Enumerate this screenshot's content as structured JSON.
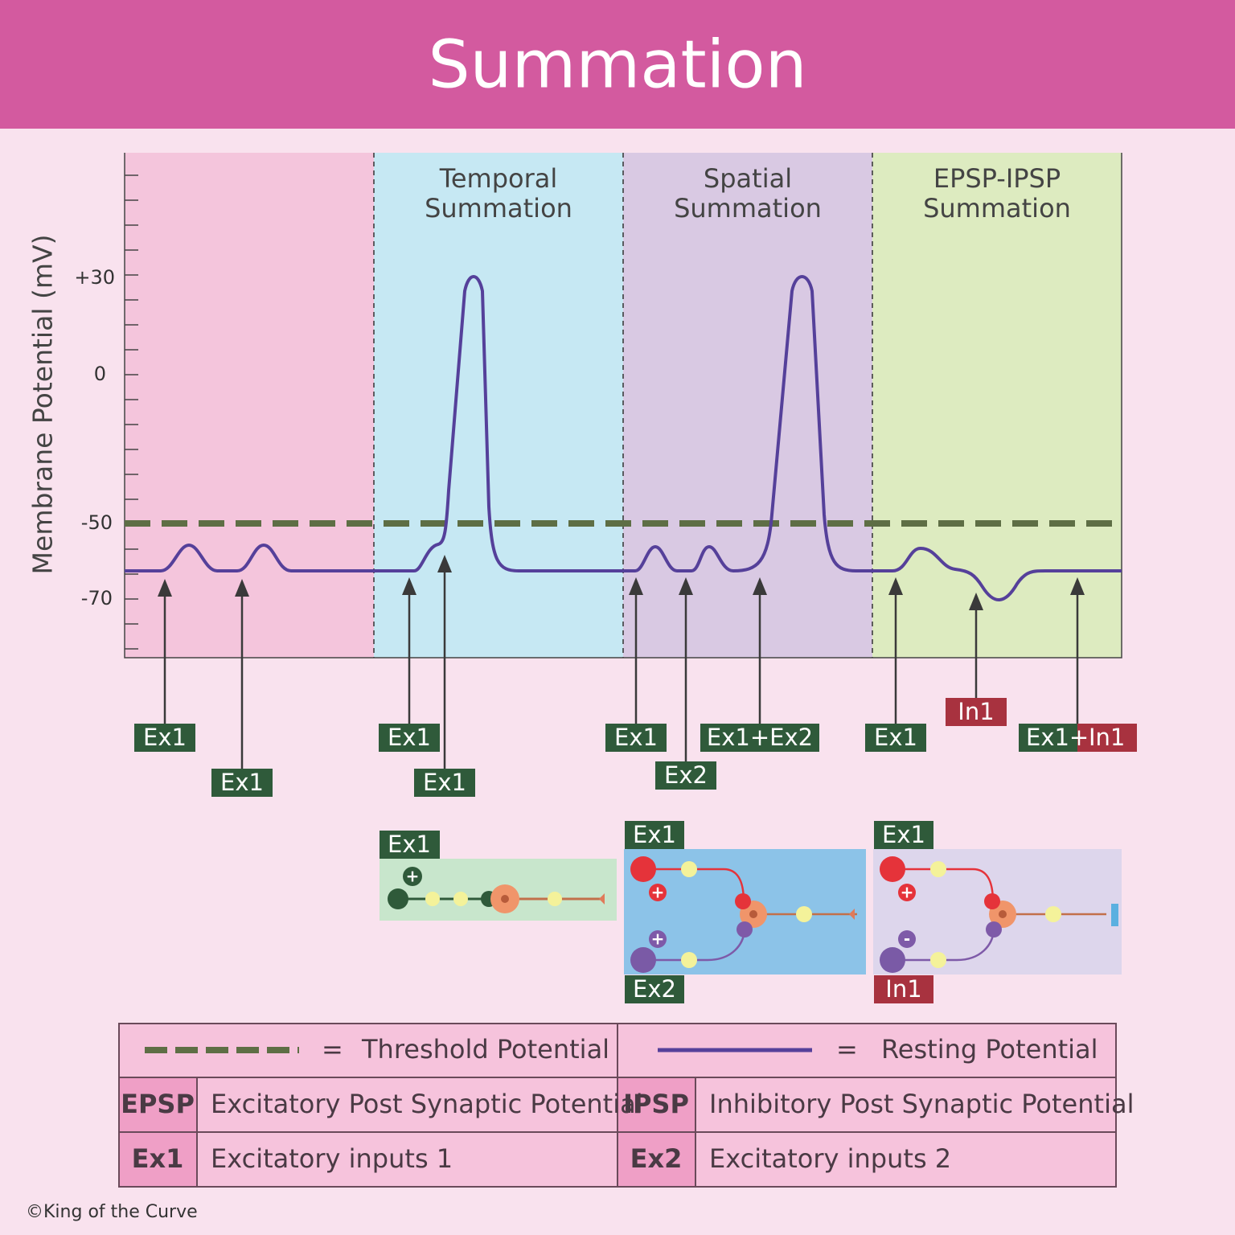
{
  "header": {
    "title": "Summation"
  },
  "graph": {
    "y_axis_label": "Membrane Potential (mV)",
    "y_tick_labels": [
      "+30",
      "0",
      "-50",
      "-70"
    ],
    "panel_titles": [
      [
        "Temporal",
        "Summation"
      ],
      [
        "Spatial",
        "Summation"
      ],
      [
        "EPSP-IPSP",
        "Summation"
      ]
    ],
    "input_labels": [
      "Ex1",
      "Ex1",
      "Ex1",
      "Ex1",
      "Ex1",
      "Ex2",
      "Ex1+Ex2",
      "Ex1",
      "In1"
    ],
    "combined_label": {
      "excitatory": "Ex1+",
      "inhibitory": "In1"
    }
  },
  "synapse_diagrams": [
    {
      "label": "Ex1",
      "sign": "+"
    },
    {
      "top_label": "Ex1",
      "top_sign": "+",
      "bottom_label": "Ex2",
      "bottom_sign": "+"
    },
    {
      "top_label": "Ex1",
      "top_sign": "+",
      "bottom_label": "In1",
      "bottom_sign": "-"
    }
  ],
  "legend": {
    "lines": [
      {
        "equals": "=",
        "label": "Threshold Potential"
      },
      {
        "equals": "=",
        "label": "Resting Potential"
      }
    ],
    "abbreviations": [
      {
        "abbr": "EPSP",
        "meaning": "Excitatory Post Synaptic Potential"
      },
      {
        "abbr": "IPSP",
        "meaning": "Inhibitory Post Synaptic Potential"
      },
      {
        "abbr": "Ex1",
        "meaning": "Excitatory inputs 1"
      },
      {
        "abbr": "Ex2",
        "meaning": "Excitatory inputs 2"
      }
    ]
  },
  "footer": "©King of the Curve"
}
